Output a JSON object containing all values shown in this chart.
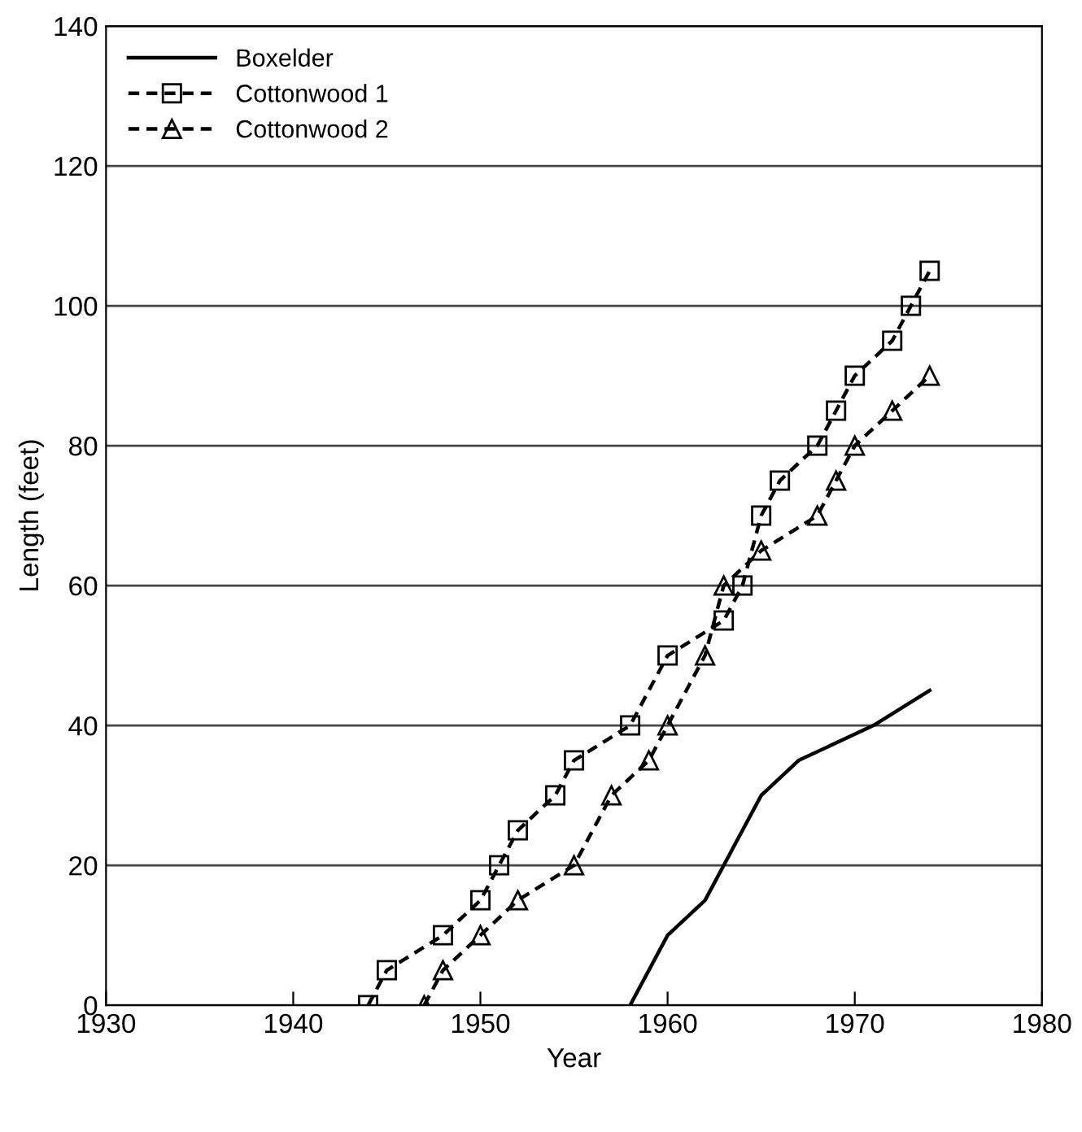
{
  "chart_data": {
    "type": "line",
    "xlabel": "Year",
    "ylabel": "Length (feet)",
    "xlim": [
      1930,
      1980
    ],
    "xticks": [
      1930,
      1940,
      1950,
      1960,
      1970,
      1980
    ],
    "ylim": [
      0,
      140
    ],
    "yticks": [
      0,
      20,
      40,
      60,
      80,
      100,
      120,
      140
    ],
    "grid": "y",
    "legend": "top left",
    "series": [
      {
        "name": "Boxelder",
        "color": "#000000",
        "line_style": "solid",
        "marker": "none",
        "x": [
          1958,
          1960,
          1962,
          1965,
          1967,
          1971,
          1974
        ],
        "values": [
          0,
          10,
          15,
          30,
          35,
          40,
          45
        ]
      },
      {
        "name": "Cottonwood 1",
        "color": "#000000",
        "line_style": "dashed",
        "marker": "square",
        "x": [
          1944,
          1945,
          1948,
          1950,
          1951,
          1952,
          1954,
          1955,
          1958,
          1960,
          1963,
          1964,
          1965,
          1966,
          1968,
          1969,
          1970,
          1972,
          1973,
          1974
        ],
        "values": [
          0,
          5,
          10,
          15,
          20,
          25,
          30,
          35,
          40,
          50,
          55,
          60,
          70,
          75,
          80,
          85,
          90,
          95,
          100,
          105
        ]
      },
      {
        "name": "Cottonwood 2",
        "color": "#000000",
        "line_style": "dashed",
        "marker": "triangle",
        "x": [
          1947,
          1948,
          1950,
          1952,
          1955,
          1957,
          1959,
          1960,
          1962,
          1963,
          1965,
          1968,
          1969,
          1970,
          1972,
          1974
        ],
        "values": [
          0,
          5,
          10,
          15,
          20,
          30,
          35,
          40,
          50,
          60,
          65,
          70,
          75,
          80,
          85,
          90
        ]
      }
    ]
  }
}
